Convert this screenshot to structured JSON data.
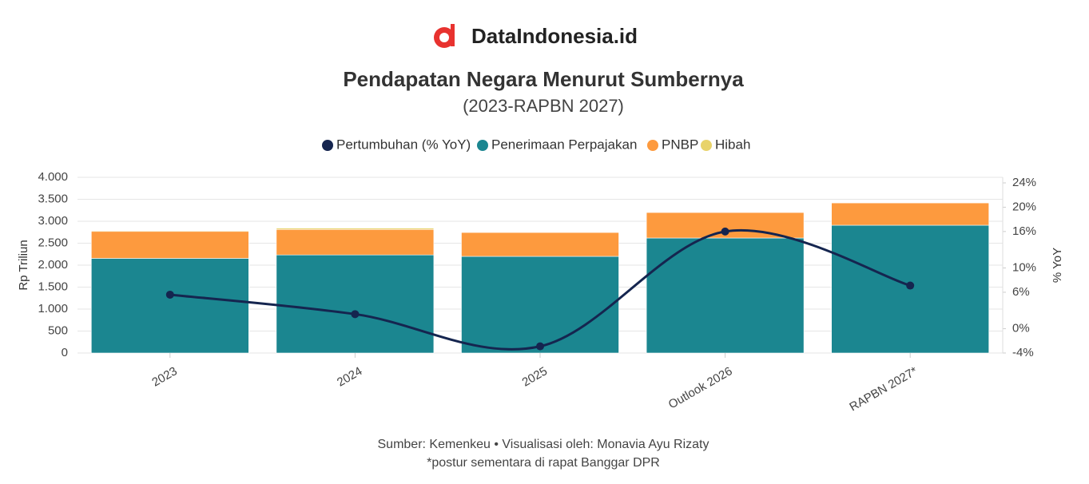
{
  "header": {
    "brand": "DataIndonesia.id"
  },
  "chart_data": {
    "type": "bar",
    "stacked": true,
    "title": "Pendapatan Negara Menurut Sumbernya",
    "subtitle": "(2023-RAPBN 2027)",
    "source": "Sumber: Kemenkeu • Visualisasi oleh: Monavia Ayu Rizaty",
    "note": "*postur sementara di rapat Banggar DPR",
    "ylabel": "Rp Triliun",
    "y2label": "% YoY",
    "categories": [
      "2023",
      "2024",
      "2025",
      "Outlook 2026",
      "RAPBN 2027*"
    ],
    "series": [
      {
        "name": "Pertumbuhan (% YoY)",
        "type": "line",
        "axis": "y2",
        "color": "#15254f",
        "values": [
          5.6,
          2.4,
          -2.9,
          16.0,
          7.1
        ]
      },
      {
        "name": "Penerimaan Perpajakan",
        "type": "bar",
        "color": "#1b8690",
        "values": [
          2155,
          2233,
          2200,
          2618,
          2909
        ]
      },
      {
        "name": "PNBP",
        "type": "bar",
        "color": "#fd9a3e",
        "values": [
          613,
          580,
          545,
          582,
          509
        ]
      },
      {
        "name": "Hibah",
        "type": "bar",
        "color": "#e8d36a",
        "values": [
          16,
          30,
          2,
          1,
          1
        ]
      }
    ],
    "ylim": [
      0,
      4000
    ],
    "yticks": [
      0,
      500,
      {
        "value": 1000,
        "label": "1.000"
      },
      {
        "value": 1500,
        "label": "1.500"
      },
      {
        "value": 2000,
        "label": "2.000"
      },
      {
        "value": 2500,
        "label": "2.500"
      },
      {
        "value": 3000,
        "label": "3.000"
      },
      {
        "value": 3500,
        "label": "3.500"
      },
      {
        "value": 4000,
        "label": "4.000"
      }
    ],
    "y2lim": [
      -4,
      24
    ],
    "y2ticks": [
      {
        "value": -4,
        "label": "-4%"
      },
      {
        "value": 0,
        "label": "0%"
      },
      {
        "value": 6,
        "label": "6%"
      },
      {
        "value": 10,
        "label": "10%"
      },
      {
        "value": 16,
        "label": "16%"
      },
      {
        "value": 20,
        "label": "20%"
      },
      {
        "value": 24,
        "label": "24%"
      }
    ],
    "grid": true
  }
}
